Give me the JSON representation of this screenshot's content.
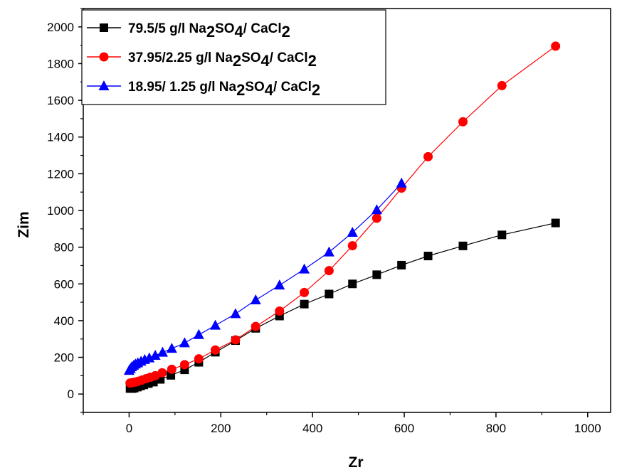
{
  "chart_data": {
    "type": "scatter",
    "xlabel": "Zr",
    "ylabel": "Zim",
    "xlim": [
      -100,
      1050
    ],
    "ylim": [
      -100,
      2100
    ],
    "xticks": [
      0,
      200,
      400,
      600,
      800,
      1000
    ],
    "yticks": [
      0,
      200,
      400,
      600,
      800,
      1000,
      1200,
      1400,
      1600,
      1800,
      2000
    ],
    "grid": false,
    "legend_position": "top-left",
    "series": [
      {
        "name": "79.5/5 g/l  Na2SO4/ CaCl2",
        "legend": {
          "parts": [
            {
              "t": "79.5/5 g/l  Na",
              "sub": false
            },
            {
              "t": "2",
              "sub": true
            },
            {
              "t": "SO",
              "sub": false
            },
            {
              "t": "4",
              "sub": true
            },
            {
              "t": "/ CaCl",
              "sub": false
            },
            {
              "t": "2",
              "sub": true
            }
          ]
        },
        "color": "#000000",
        "marker": "square",
        "points": [
          [
            2,
            30
          ],
          [
            6,
            30
          ],
          [
            11,
            32
          ],
          [
            18,
            38
          ],
          [
            25,
            44
          ],
          [
            32,
            50
          ],
          [
            42,
            57
          ],
          [
            53,
            65
          ],
          [
            68,
            80
          ],
          [
            91,
            102
          ],
          [
            121,
            132
          ],
          [
            152,
            173
          ],
          [
            188,
            228
          ],
          [
            232,
            291
          ],
          [
            276,
            358
          ],
          [
            328,
            425
          ],
          [
            382,
            490
          ],
          [
            436,
            545
          ],
          [
            487,
            600
          ],
          [
            540,
            650
          ],
          [
            594,
            702
          ],
          [
            652,
            752
          ],
          [
            728,
            807
          ],
          [
            813,
            867
          ],
          [
            930,
            932
          ]
        ]
      },
      {
        "name": "37.95/2.25 g/l  Na2SO4/ CaCl2",
        "legend": {
          "parts": [
            {
              "t": "37.95/2.25 g/l  Na",
              "sub": false
            },
            {
              "t": "2",
              "sub": true
            },
            {
              "t": "SO",
              "sub": false
            },
            {
              "t": "4",
              "sub": true
            },
            {
              "t": "/ CaCl",
              "sub": false
            },
            {
              "t": "2",
              "sub": true
            }
          ]
        },
        "color": "#ff0000",
        "marker": "circle",
        "points": [
          [
            2,
            60
          ],
          [
            7,
            62
          ],
          [
            13,
            65
          ],
          [
            20,
            70
          ],
          [
            28,
            76
          ],
          [
            37,
            84
          ],
          [
            46,
            91
          ],
          [
            57,
            100
          ],
          [
            72,
            116
          ],
          [
            93,
            135
          ],
          [
            121,
            160
          ],
          [
            152,
            192
          ],
          [
            188,
            240
          ],
          [
            232,
            295
          ],
          [
            276,
            368
          ],
          [
            328,
            452
          ],
          [
            382,
            553
          ],
          [
            436,
            672
          ],
          [
            487,
            808
          ],
          [
            540,
            958
          ],
          [
            594,
            1122
          ],
          [
            652,
            1293
          ],
          [
            728,
            1483
          ],
          [
            813,
            1680
          ],
          [
            930,
            1895
          ]
        ]
      },
      {
        "name": "18.95/ 1.25 g/l Na2SO4/ CaCl2",
        "legend": {
          "parts": [
            {
              "t": "18.95/ 1.25 g/l Na",
              "sub": false
            },
            {
              "t": "2",
              "sub": true
            },
            {
              "t": "SO",
              "sub": false
            },
            {
              "t": "4",
              "sub": true
            },
            {
              "t": "/ CaCl",
              "sub": false
            },
            {
              "t": "2",
              "sub": true
            }
          ]
        },
        "color": "#0000ff",
        "marker": "triangle",
        "points": [
          [
            0,
            128
          ],
          [
            3,
            138
          ],
          [
            6,
            148
          ],
          [
            10,
            156
          ],
          [
            14,
            163
          ],
          [
            19,
            169
          ],
          [
            26,
            178
          ],
          [
            34,
            187
          ],
          [
            44,
            196
          ],
          [
            57,
            210
          ],
          [
            73,
            227
          ],
          [
            93,
            248
          ],
          [
            121,
            278
          ],
          [
            152,
            323
          ],
          [
            188,
            374
          ],
          [
            232,
            437
          ],
          [
            276,
            512
          ],
          [
            328,
            593
          ],
          [
            382,
            680
          ],
          [
            436,
            773
          ],
          [
            487,
            880
          ],
          [
            540,
            1003
          ],
          [
            594,
            1148
          ]
        ]
      }
    ]
  }
}
